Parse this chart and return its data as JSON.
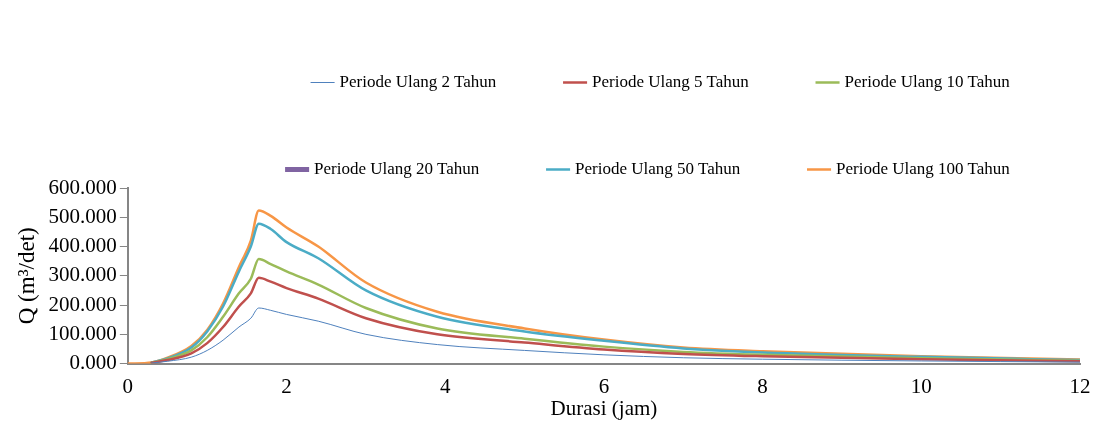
{
  "chart_data": {
    "type": "line",
    "xlabel": "Durasi (jam)",
    "ylabel": "Q (m³/det)",
    "x": [
      0,
      0.3,
      0.5,
      0.8,
      1.0,
      1.2,
      1.4,
      1.55,
      1.65,
      1.8,
      2,
      2.4,
      3,
      3.9,
      5,
      6,
      7,
      8,
      10,
      12
    ],
    "xlim": [
      0,
      12
    ],
    "xticks": [
      0,
      2,
      4,
      6,
      8,
      10,
      12
    ],
    "ylim": [
      0,
      600
    ],
    "yticks": [
      {
        "value": 0,
        "label": "0.000"
      },
      {
        "value": 100,
        "label": "100.000"
      },
      {
        "value": 200,
        "label": "200.000"
      },
      {
        "value": 300,
        "label": "300.000"
      },
      {
        "value": 400,
        "label": "400.000"
      },
      {
        "value": 500,
        "label": "500.000"
      },
      {
        "value": 600,
        "label": "600.000"
      }
    ],
    "grid": false,
    "legend": "top",
    "marker": "none",
    "line_style": "solid",
    "series": [
      {
        "name": "Periode Ulang 2 Tahun",
        "color": "#4f81bd",
        "values": [
          null,
          2,
          8,
          22,
          45,
          80,
          125,
          155,
          190,
          182,
          168,
          145,
          100,
          65,
          45,
          30,
          20,
          15,
          9,
          5
        ]
      },
      {
        "name": "Periode Ulang 5 Tahun",
        "color": "#c0504d",
        "values": [
          null,
          3,
          12,
          35,
          70,
          125,
          195,
          240,
          293,
          280,
          258,
          222,
          155,
          100,
          72,
          48,
          33,
          25,
          15,
          8
        ]
      },
      {
        "name": "Periode Ulang 10 Tahun",
        "color": "#9bbb59",
        "values": [
          null,
          3,
          15,
          45,
          90,
          160,
          240,
          290,
          357,
          340,
          315,
          270,
          190,
          120,
          85,
          58,
          40,
          30,
          18,
          10
        ]
      },
      {
        "name": "Periode Ulang 20 Tahun",
        "color": "#8064a2",
        "values": [
          null,
          null,
          null,
          null,
          null,
          null,
          null,
          null,
          null,
          null,
          null,
          null,
          null,
          null,
          null,
          null,
          null,
          null,
          null,
          null
        ]
      },
      {
        "name": "Periode Ulang 50 Tahun",
        "color": "#4bacc6",
        "values": [
          null,
          4,
          18,
          55,
          110,
          195,
          315,
          400,
          478,
          460,
          415,
          360,
          250,
          160,
          110,
          78,
          52,
          38,
          23,
          12
        ]
      },
      {
        "name": "Periode Ulang 100 Tahun",
        "color": "#f79646",
        "values": [
          0,
          4,
          20,
          60,
          115,
          205,
          330,
          420,
          523,
          505,
          465,
          400,
          277,
          177,
          120,
          82,
          55,
          42,
          25,
          14
        ]
      }
    ]
  }
}
